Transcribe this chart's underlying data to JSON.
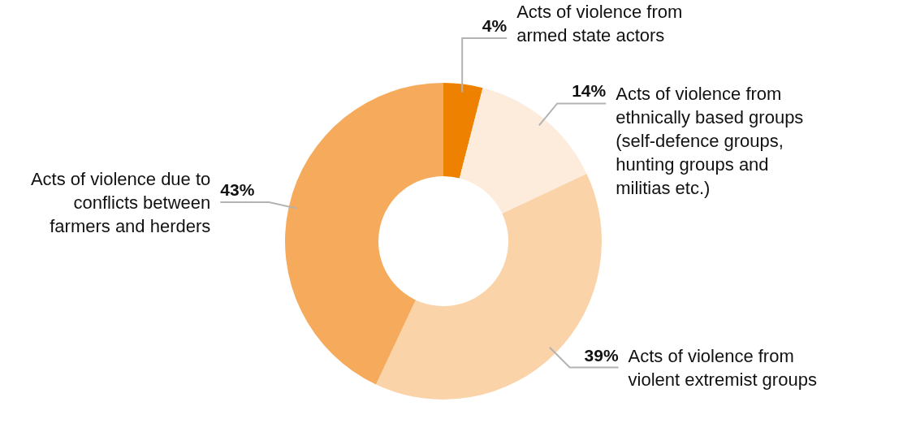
{
  "chart_data": {
    "type": "donut",
    "categories": [
      "Acts of violence from armed state actors",
      "Acts of violence from ethnically based groups (self-defence groups, hunting groups and militias etc.)",
      "Acts of violence from violent extremist groups",
      "Acts of violence due to conflicts between farmers and herders"
    ],
    "values": [
      4,
      14,
      39,
      43
    ],
    "colors": [
      "#ee8200",
      "#fdebdb",
      "#fad3a8",
      "#f5ab5b"
    ],
    "value_labels": [
      "4%",
      "14%",
      "39%",
      "43%"
    ]
  }
}
